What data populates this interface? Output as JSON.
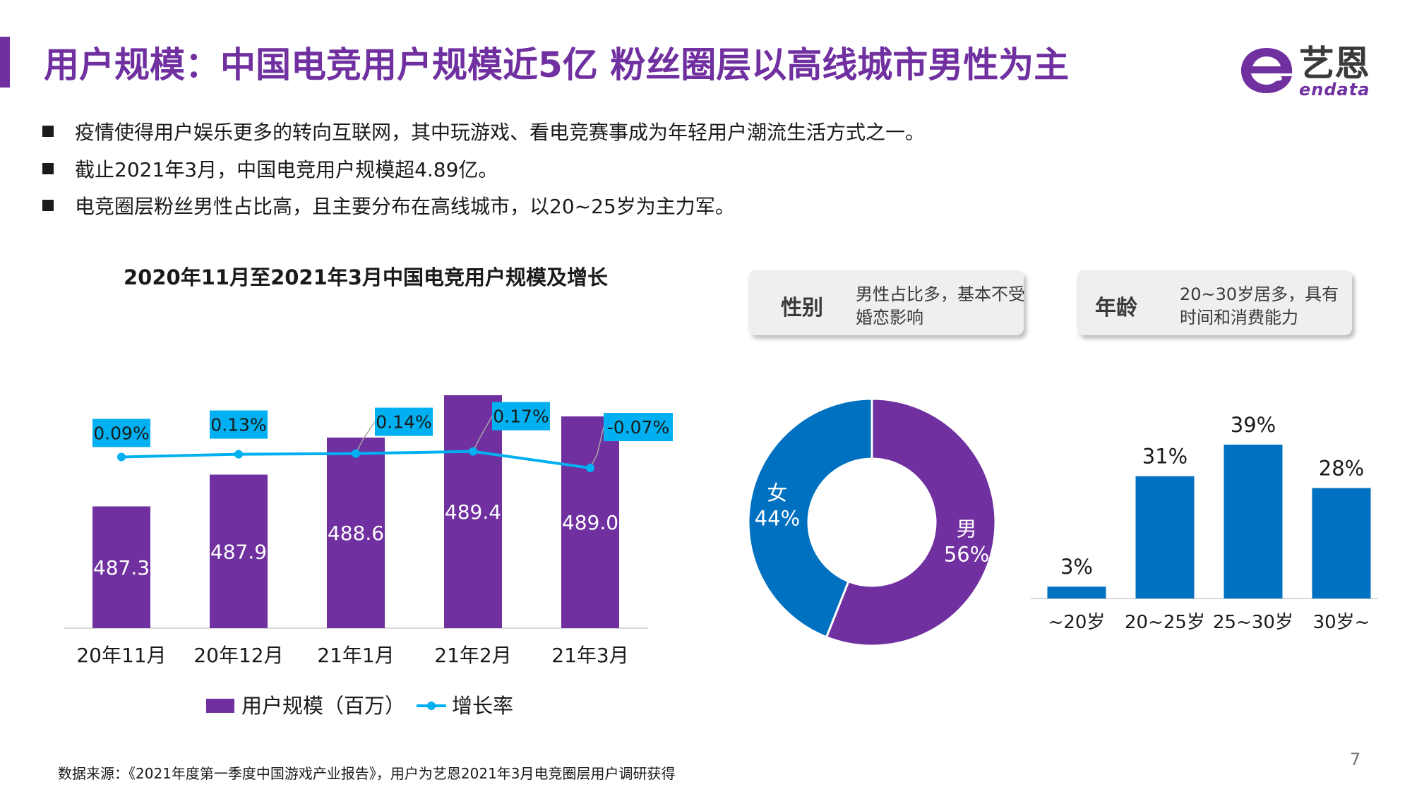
{
  "header": {
    "title": "用户规模：中国电竞用户规模近5亿  粉丝圈层以高线城市男性为主"
  },
  "logo": {
    "name_cn": "艺恩",
    "name_en": "endata",
    "brand_color": "#7030a0"
  },
  "bullets": [
    "疫情使得用户娱乐更多的转向互联网，其中玩游戏、看电竞赛事成为年轻用户潮流生活方式之一。",
    "截止2021年3月，中国电竞用户规模超4.89亿。",
    "电竞圈层粉丝男性占比高，且主要分布在高线城市，以20~25岁为主力军。"
  ],
  "cards": {
    "gender": {
      "label": "性别",
      "desc": "男性占比多，基本不受婚恋影响"
    },
    "age": {
      "label": "年龄",
      "desc": "20~30岁居多，具有时间和消费能力"
    }
  },
  "chart_data": [
    {
      "type": "bar",
      "title": "2020年11月至2021年3月中国电竞用户规模及增长",
      "categories": [
        "20年11月",
        "20年12月",
        "21年1月",
        "21年2月",
        "21年3月"
      ],
      "series": [
        {
          "name": "用户规模（百万）",
          "kind": "bar",
          "color": "#7030a0",
          "values": [
            487.3,
            487.9,
            488.6,
            489.4,
            489.0
          ],
          "labels": [
            "487.3",
            "487.9",
            "488.6",
            "489.4",
            "489.0"
          ]
        },
        {
          "name": "增长率",
          "kind": "line",
          "color": "#00b0f0",
          "values": [
            0.09,
            0.13,
            0.14,
            0.17,
            -0.07
          ],
          "labels": [
            "0.09%",
            "0.13%",
            "0.14%",
            "0.17%",
            "-0.07%"
          ]
        }
      ],
      "ylim": [
        485,
        490
      ],
      "line_ylim": [
        -2.4,
        1.45
      ],
      "legend": "bottom"
    },
    {
      "type": "pie",
      "subtype": "donut",
      "title": "性别",
      "slices": [
        {
          "name": "男",
          "value": 56,
          "label": "56%",
          "color": "#7030a0"
        },
        {
          "name": "女",
          "value": 44,
          "label": "44%",
          "color": "#0070c0"
        }
      ]
    },
    {
      "type": "bar",
      "title": "年龄",
      "categories": [
        "~20岁",
        "20~25岁",
        "25~30岁",
        "30岁~"
      ],
      "values": [
        3,
        31,
        39,
        28
      ],
      "labels": [
        "3%",
        "31%",
        "39%",
        "28%"
      ],
      "color": "#0070c0",
      "ylim": [
        0,
        39
      ]
    }
  ],
  "footer": {
    "source": "数据来源：《2021年度第一季度中国游戏产业报告》，用户为艺恩2021年3月电竞圈层用户调研获得",
    "page_number": "7"
  }
}
